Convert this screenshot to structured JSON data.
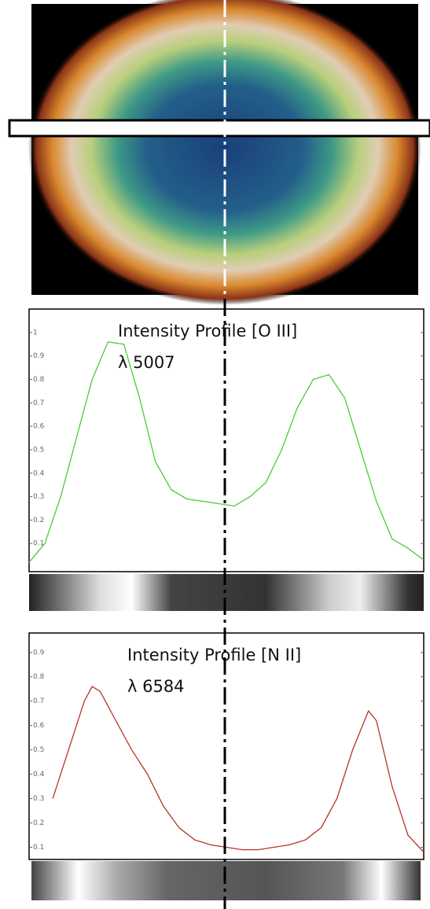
{
  "chart_data": [
    {
      "type": "line",
      "title": "Intensity Profile [O III]",
      "subtitle": "λ 5007",
      "x": [
        0,
        4,
        8,
        12,
        16,
        20,
        24,
        28,
        32,
        36,
        40,
        44,
        48,
        52,
        56,
        60,
        64,
        68,
        72,
        76,
        80,
        84,
        88,
        92,
        96,
        100
      ],
      "series": [
        {
          "color": "#4fc83c",
          "values": [
            0.02,
            0.1,
            0.3,
            0.55,
            0.8,
            0.96,
            0.95,
            0.72,
            0.45,
            0.33,
            0.29,
            0.28,
            0.27,
            0.26,
            0.3,
            0.36,
            0.5,
            0.68,
            0.8,
            0.82,
            0.72,
            0.5,
            0.28,
            0.12,
            0.08,
            0.03
          ]
        }
      ],
      "xlim": [
        0,
        100
      ],
      "ylim": [
        -0.02,
        1.1
      ],
      "yticks": [
        0.1,
        0.2,
        0.3,
        0.4,
        0.5,
        0.6,
        0.7,
        0.8,
        0.9,
        1
      ]
    },
    {
      "type": "line",
      "title": "Intensity Profile  [N II]",
      "subtitle": "λ 6584",
      "x": [
        6,
        10,
        14,
        16,
        18,
        22,
        26,
        30,
        34,
        38,
        42,
        46,
        50,
        54,
        58,
        62,
        66,
        70,
        74,
        78,
        82,
        86,
        88,
        92,
        96,
        100
      ],
      "series": [
        {
          "color": "#b8322a",
          "values": [
            0.3,
            0.5,
            0.7,
            0.76,
            0.74,
            0.62,
            0.5,
            0.4,
            0.27,
            0.18,
            0.13,
            0.11,
            0.1,
            0.09,
            0.09,
            0.1,
            0.11,
            0.13,
            0.18,
            0.3,
            0.5,
            0.66,
            0.62,
            0.35,
            0.15,
            0.08
          ]
        }
      ],
      "xlim": [
        0,
        100
      ],
      "ylim": [
        0.05,
        0.98
      ],
      "yticks": [
        0.1,
        0.2,
        0.3,
        0.4,
        0.5,
        0.6,
        0.7,
        0.8,
        0.9
      ]
    }
  ]
}
